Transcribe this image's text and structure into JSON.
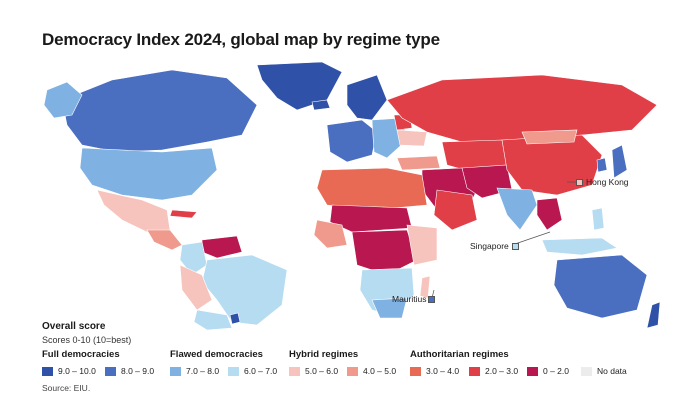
{
  "title": "Democracy Index 2024, global map by regime type",
  "colors": {
    "full_high": "#2f52a8",
    "full_low": "#4a6fc0",
    "flawed_high": "#7fb2e2",
    "flawed_low": "#b6dcf2",
    "hybrid_high": "#f7c3bd",
    "hybrid_low": "#ef9a8c",
    "auth_high": "#e86a55",
    "auth_mid": "#e13f47",
    "auth_low": "#b8174f",
    "no_data": "#ececec",
    "ocean": "#ffffff"
  },
  "callouts": {
    "hong_kong": "Hong Kong",
    "singapore": "Singapore",
    "mauritius": "Mauritius"
  },
  "legend": {
    "title": "Overall score",
    "subtitle": "Scores 0-10 (10=best)",
    "groups": {
      "full": "Full democracies",
      "flawed": "Flawed democracies",
      "hybrid": "Hybrid regimes",
      "authoritarian": "Authoritarian regimes"
    },
    "items": [
      {
        "label": "9.0 – 10.0",
        "color_key": "full_high"
      },
      {
        "label": "8.0 – 9.0",
        "color_key": "full_low"
      },
      {
        "label": "7.0 – 8.0",
        "color_key": "flawed_high"
      },
      {
        "label": "6.0 – 7.0",
        "color_key": "flawed_low"
      },
      {
        "label": "5.0 – 6.0",
        "color_key": "hybrid_high"
      },
      {
        "label": "4.0 – 5.0",
        "color_key": "hybrid_low"
      },
      {
        "label": "3.0 – 4.0",
        "color_key": "auth_high"
      },
      {
        "label": "2.0 – 3.0",
        "color_key": "auth_mid"
      },
      {
        "label": "0 – 2.0",
        "color_key": "auth_low"
      },
      {
        "label": "No data",
        "color_key": "no_data"
      }
    ]
  },
  "source": "Source: EIU."
}
